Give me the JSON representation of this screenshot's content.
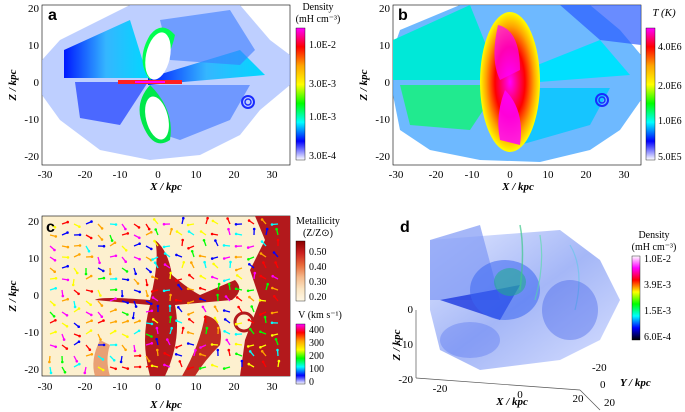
{
  "figure": {
    "panels": [
      {
        "letter": "a",
        "colorbar": {
          "title_line1": "Density",
          "title_line2": "(mH cm⁻³)",
          "ticks": [
            "1.0E-2",
            "3.0E-3",
            "1.0E-3",
            "3.0E-4"
          ],
          "colors": [
            "#ff00ff",
            "#ff0000",
            "#ffa500",
            "#ffff00",
            "#00ff00",
            "#00ffff",
            "#0000ff",
            "#ffffff"
          ]
        },
        "xlabel": "X / kpc",
        "ylabel": "Z / kpc",
        "xticks": [
          "-30",
          "-20",
          "-10",
          "0",
          "10",
          "20",
          "30"
        ],
        "yticks": [
          "20",
          "10",
          "0",
          "-10",
          "-20"
        ]
      },
      {
        "letter": "b",
        "colorbar": {
          "title_line1": "T (K)",
          "title_line2": "",
          "ticks": [
            "4.0E6",
            "2.0E6",
            "1.0E6",
            "5.0E5"
          ],
          "colors": [
            "#ff00ff",
            "#ff0000",
            "#ffa500",
            "#ffff00",
            "#00ff00",
            "#00ffff",
            "#0000ff",
            "#ffffff"
          ]
        },
        "xlabel": "X / kpc",
        "ylabel": "Z / kpc",
        "xticks": [
          "-30",
          "-20",
          "-10",
          "0",
          "10",
          "20",
          "30"
        ],
        "yticks": [
          "20",
          "10",
          "0",
          "-10",
          "-20"
        ]
      },
      {
        "letter": "c",
        "colorbar": {
          "title_line1": "Metallicity",
          "title_line2": "(Z/Z⊙)",
          "ticks": [
            "0.50",
            "0.40",
            "0.30",
            "0.20"
          ],
          "colors": [
            "#8b0000",
            "#cc2020",
            "#e86a3a",
            "#f5b88a",
            "#fbe5c2",
            "#fff8e6"
          ]
        },
        "colorbar2": {
          "title_line1": "V (km s⁻¹)",
          "ticks": [
            "400",
            "300",
            "200",
            "100",
            "0"
          ],
          "colors": [
            "#ff00ff",
            "#ff0000",
            "#ffa500",
            "#ffff00",
            "#00ff00",
            "#00ffff",
            "#0000ff",
            "#ffffff"
          ]
        },
        "xlabel": "X / kpc",
        "ylabel": "Z / kpc",
        "xticks": [
          "-30",
          "-20",
          "-10",
          "0",
          "10",
          "20",
          "30"
        ],
        "yticks": [
          "20",
          "10",
          "0",
          "-10",
          "-20"
        ]
      },
      {
        "letter": "d",
        "colorbar": {
          "title_line1": "Density",
          "title_line2": "(mH cm⁻³)",
          "ticks": [
            "1.0E-2",
            "3.9E-3",
            "1.5E-3",
            "6.0E-4"
          ],
          "colors": [
            "#ffffff",
            "#ff00ff",
            "#ff0000",
            "#ffff00",
            "#00ff00",
            "#00ffff",
            "#0000ff",
            "#000000"
          ]
        },
        "xlabel": "X / kpc",
        "ylabel": "Z / kpc",
        "y3dlabel": "Y / kpc",
        "xticks": [
          "-20",
          "0",
          "20"
        ],
        "zticks": [
          "0",
          "-10",
          "-20"
        ],
        "yticks": [
          "-20",
          "0",
          "20"
        ]
      }
    ]
  }
}
